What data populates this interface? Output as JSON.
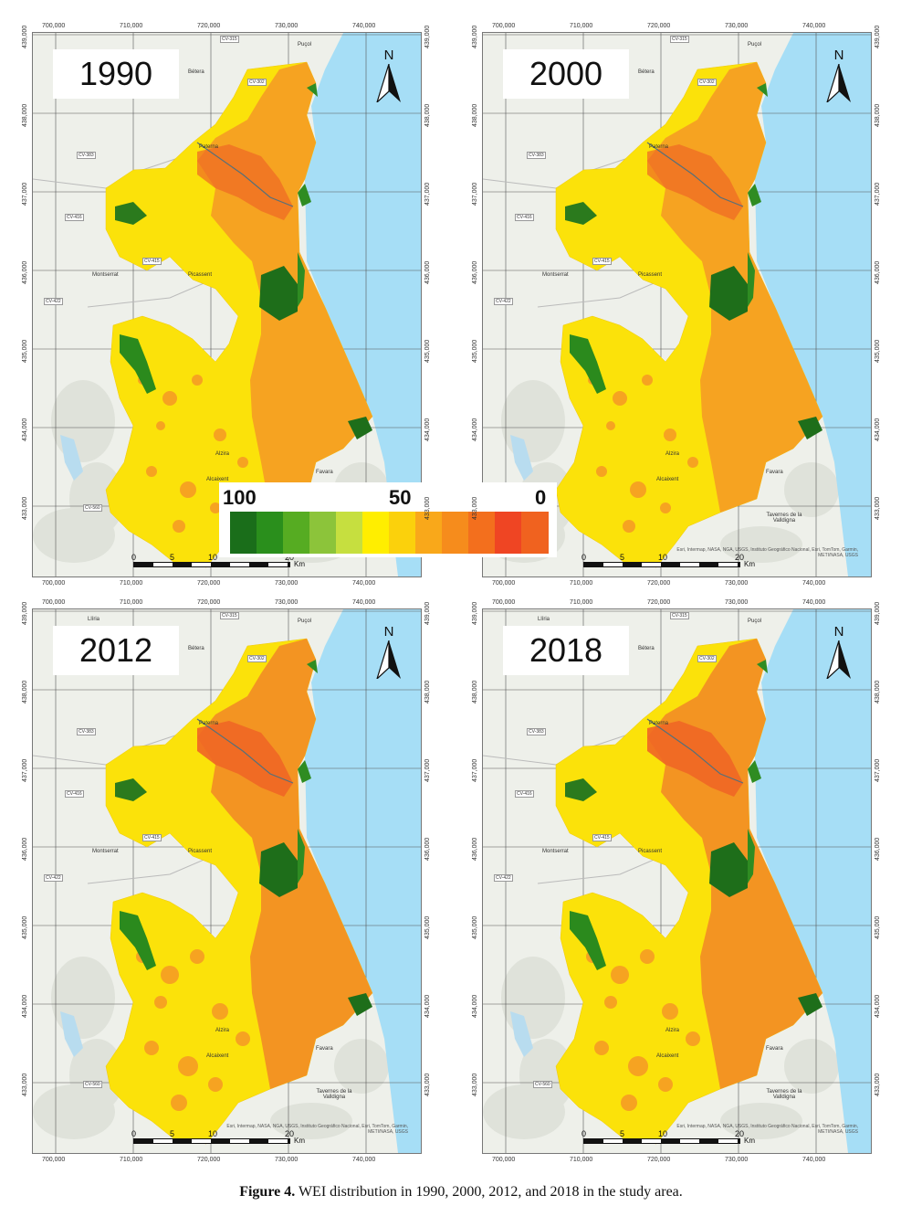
{
  "panels": [
    {
      "id": "p1990",
      "year": "1990"
    },
    {
      "id": "p2000",
      "year": "2000"
    },
    {
      "id": "p2012",
      "year": "2012"
    },
    {
      "id": "p2018",
      "year": "2018"
    }
  ],
  "north_label": "N",
  "x_ticks": [
    "700,000",
    "710,000",
    "720,000",
    "730,000",
    "740,000"
  ],
  "y_ticks": [
    "439,000",
    "438,000",
    "437,000",
    "436,000",
    "435,000",
    "434,000",
    "433,000"
  ],
  "places": {
    "betera": "Bétera",
    "pucol": "Puçol",
    "paterna": "Paterna",
    "montserrat": "Montserrat",
    "picassent": "Picassent",
    "alzira": "Alzira",
    "favara": "Favara",
    "llaurí": "Tavernes de la Valldigna",
    "alcaixent": "Alcaixent",
    "lliria": "Llíria"
  },
  "roads": {
    "cv315": "CV-315",
    "cv302": "CV-302",
    "cv383": "CV-383",
    "cv416": "CV-416",
    "cv415": "CV-415",
    "cv422": "CV-422",
    "cv560": "CV-560"
  },
  "scale": {
    "labels": [
      "0",
      "5",
      "10",
      "20"
    ],
    "unit": "Km"
  },
  "credit": "Esri, Intermap, NASA, NGA, USGS, Instituto Geográfico Nacional, Esri, TomTom, Garmin, METI/NASA, USGS",
  "legend": {
    "labels": [
      "100",
      "50",
      "0"
    ],
    "colors": [
      "#1a6e1a",
      "#2a8f1c",
      "#56ac22",
      "#8cc43a",
      "#c6df3f",
      "#ffee00",
      "#fbd10c",
      "#f9a81a",
      "#f68c1c",
      "#f36f1d",
      "#ef4523",
      "#f0621f"
    ]
  },
  "colors": {
    "water": "#a6def6",
    "land": "#eef0ea",
    "yellow": "#fbe20a",
    "orange": "#f6a321",
    "red": "#ef6625",
    "green": "#1e6e1a"
  },
  "caption": {
    "prefix": "Figure 4.",
    "text": " WEI distribution in 1990, 2000, 2012, and 2018 in the study area."
  }
}
